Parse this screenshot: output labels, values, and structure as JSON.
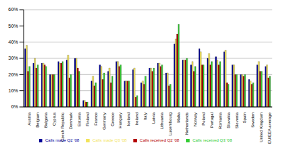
{
  "chart_data": {
    "type": "bar",
    "categories": [
      "Austria",
      "Belgium",
      "Bulgaria",
      "Cyprus",
      "Czech Republic",
      "Denmark",
      "Estonia",
      "Finland",
      "France",
      "Germany",
      "Greece",
      "Hungary",
      "Iceland",
      "Ireland",
      "Italy",
      "Latvia",
      "Lithuania",
      "Luxembourg",
      "Malta",
      "Netherlands",
      "Norway",
      "Poland",
      "Portugal",
      "Romania",
      "Slovakia",
      "Slovenia",
      "Spain",
      "Sweden",
      "United Kingdom",
      "EU/EEA average"
    ],
    "series": [
      {
        "name": "Calls made Q2 '08",
        "color": "#000099",
        "values": [
          36,
          27,
          27,
          20,
          28,
          29,
          30,
          4,
          16,
          26,
          22,
          28,
          16,
          23,
          15,
          24,
          27,
          21,
          39,
          29,
          26,
          36,
          30,
          31,
          34,
          26,
          20,
          17,
          26,
          25
        ]
      },
      {
        "name": "Calls made Q3 '08",
        "color": "#f2e35a",
        "values": [
          38,
          30,
          27,
          20,
          27,
          32,
          30,
          4,
          19,
          25,
          24,
          28,
          16,
          24,
          16,
          24,
          27,
          21,
          42,
          29,
          28,
          34,
          33,
          29,
          35,
          26,
          20,
          16,
          28,
          26
        ]
      },
      {
        "name": "Calls received Q2 '08",
        "color": "#b30000",
        "values": [
          22,
          24,
          26,
          20,
          27,
          18,
          24,
          3,
          13,
          17,
          15,
          25,
          16,
          6,
          14,
          22,
          25,
          13,
          45,
          29,
          22,
          26,
          26,
          26,
          15,
          20,
          19,
          14,
          22,
          18
        ]
      },
      {
        "name": "Calls received Q3 '08",
        "color": "#33cc33",
        "values": [
          25,
          26,
          25,
          20,
          28,
          20,
          22,
          3,
          15,
          21,
          19,
          26,
          16,
          7,
          19,
          24,
          26,
          14,
          51,
          30,
          25,
          26,
          28,
          28,
          14,
          20,
          20,
          15,
          22,
          19
        ]
      }
    ],
    "ylim": [
      0,
      60
    ],
    "yticks": [
      {
        "value": 0,
        "label": "0%"
      },
      {
        "value": 10,
        "label": "10%"
      },
      {
        "value": 20,
        "label": "20%"
      },
      {
        "value": 30,
        "label": "30%"
      },
      {
        "value": 40,
        "label": "40%"
      },
      {
        "value": 50,
        "label": "50%"
      },
      {
        "value": 60,
        "label": "60%"
      }
    ],
    "grid": true,
    "legend": "bottom"
  }
}
